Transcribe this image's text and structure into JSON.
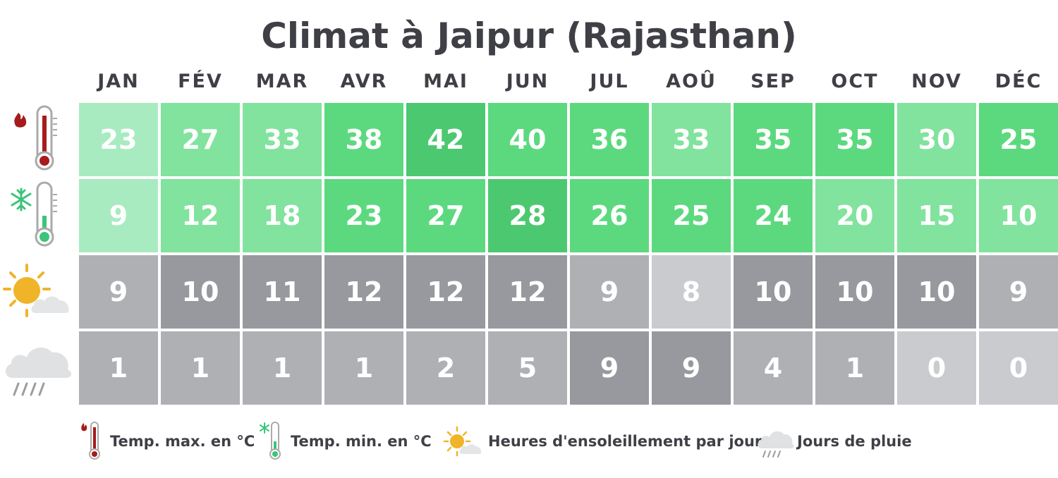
{
  "title": "Climat à Jaipur (Rajasthan)",
  "months": [
    "JAN",
    "FÉV",
    "MAR",
    "AVR",
    "MAI",
    "JUN",
    "JUL",
    "AOÛ",
    "SEP",
    "OCT",
    "NOV",
    "DÉC"
  ],
  "legend": {
    "tmax": "Temp. max. en °C",
    "tmin": "Temp. min. en °C",
    "sun": "Heures d'ensoleillement par jour",
    "rain": "Jours de pluie"
  },
  "colors": {
    "green": [
      "#a8ebc0",
      "#81e39d",
      "#5cd97f",
      "#4cc871"
    ],
    "gray": [
      "#c9cbce",
      "#aeb0b4",
      "#97999e"
    ]
  },
  "chart_data": {
    "type": "table",
    "title": "Climat à Jaipur (Rajasthan)",
    "categories": [
      "JAN",
      "FÉV",
      "MAR",
      "AVR",
      "MAI",
      "JUN",
      "JUL",
      "AOÛ",
      "SEP",
      "OCT",
      "NOV",
      "DÉC"
    ],
    "series": [
      {
        "name": "Temp. max. en °C",
        "values": [
          23,
          27,
          33,
          38,
          42,
          40,
          36,
          33,
          35,
          35,
          30,
          25
        ]
      },
      {
        "name": "Temp. min. en °C",
        "values": [
          9,
          12,
          18,
          23,
          27,
          28,
          26,
          25,
          24,
          20,
          15,
          10
        ]
      },
      {
        "name": "Heures d'ensoleillement par jour",
        "values": [
          9,
          10,
          11,
          12,
          12,
          12,
          9,
          8,
          10,
          10,
          10,
          9
        ]
      },
      {
        "name": "Jours de pluie",
        "values": [
          1,
          1,
          1,
          1,
          2,
          5,
          9,
          9,
          4,
          1,
          0,
          0
        ]
      }
    ],
    "cell_shades": [
      [
        0,
        1,
        1,
        2,
        3,
        2,
        2,
        1,
        2,
        2,
        1,
        2
      ],
      [
        0,
        1,
        1,
        2,
        2,
        3,
        2,
        2,
        2,
        1,
        1,
        1
      ],
      [
        1,
        2,
        2,
        2,
        2,
        2,
        1,
        0,
        2,
        2,
        2,
        1
      ],
      [
        1,
        1,
        1,
        1,
        1,
        1,
        2,
        2,
        1,
        1,
        0,
        0
      ]
    ]
  }
}
